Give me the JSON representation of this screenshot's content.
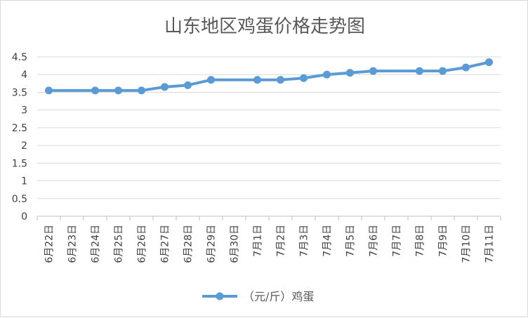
{
  "chart_data": {
    "type": "line",
    "title": "山东地区鸡蛋价格走势图",
    "xlabel": "",
    "ylabel": "",
    "ylim": [
      0,
      4.5
    ],
    "yticks": [
      "0",
      "0.5",
      "1",
      "1.5",
      "2",
      "2.5",
      "3",
      "3.5",
      "4",
      "4.5"
    ],
    "grid": true,
    "legend": "bottom",
    "categories": [
      "6月22日",
      "6月23日",
      "6月24日",
      "6月25日",
      "6月26日",
      "6月27日",
      "6月28日",
      "6月29日",
      "6月30日",
      "7月1日",
      "7月2日",
      "7月3日",
      "7月4日",
      "7月5日",
      "7月6日",
      "7月7日",
      "7月8日",
      "7月9日",
      "7月10日",
      "7月11日"
    ],
    "series": [
      {
        "name": "（元/斤）鸡蛋",
        "color": "#5b9bd5",
        "values": [
          3.55,
          null,
          3.55,
          3.55,
          3.55,
          3.65,
          3.7,
          3.85,
          null,
          3.85,
          3.85,
          3.9,
          4.0,
          4.05,
          4.1,
          null,
          4.1,
          4.1,
          4.2,
          4.35
        ]
      }
    ]
  }
}
